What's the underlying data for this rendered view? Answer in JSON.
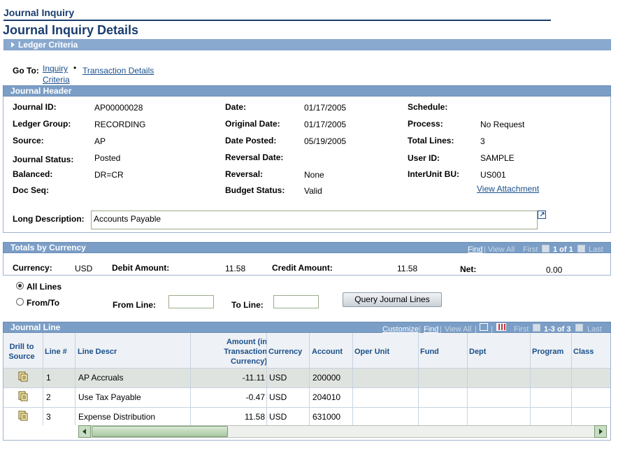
{
  "page": {
    "breadcrumb": "Journal Inquiry",
    "title": "Journal Inquiry Details",
    "ledger_criteria": "Ledger Criteria"
  },
  "goto": {
    "label": "Go To:",
    "inquiry_line1": "Inquiry",
    "inquiry_line2": "Criteria",
    "bullet": "•",
    "transaction_details": "Transaction Details"
  },
  "journal_header": {
    "title": "Journal Header",
    "journal_id_label": "Journal ID:",
    "journal_id": "AP00000028",
    "ledger_group_label": "Ledger Group:",
    "ledger_group": "RECORDING",
    "source_label": "Source:",
    "source": "AP",
    "journal_status_label": "Journal Status:",
    "journal_status": "Posted",
    "balanced_label": "Balanced:",
    "balanced": "DR=CR",
    "doc_seq_label": "Doc Seq:",
    "date_label": "Date:",
    "date": "01/17/2005",
    "original_date_label": "Original Date:",
    "original_date": "01/17/2005",
    "date_posted_label": "Date Posted:",
    "date_posted": "05/19/2005",
    "reversal_date_label": "Reversal Date:",
    "reversal_label": "Reversal:",
    "reversal": "None",
    "budget_status_label": "Budget Status:",
    "budget_status": "Valid",
    "schedule_label": "Schedule:",
    "process_label": "Process:",
    "process": "No Request",
    "total_lines_label": "Total Lines:",
    "total_lines": "3",
    "user_id_label": "User ID:",
    "user_id": "SAMPLE",
    "interunit_label": "InterUnit BU:",
    "interunit": "US001",
    "view_attachment": "View Attachment",
    "long_desc_label": "Long Description:",
    "long_desc": "Accounts Payable"
  },
  "totals": {
    "title": "Totals by Currency",
    "find": "Find",
    "view_all": "View All",
    "first": "First",
    "page_count": "1 of 1",
    "last": "Last",
    "currency_label": "Currency:",
    "currency": "USD",
    "debit_label": "Debit Amount:",
    "debit": "11.58",
    "credit_label": "Credit Amount:",
    "credit": "11.58",
    "net_label": "Net:",
    "net": "0.00"
  },
  "line_filter": {
    "all_lines": "All Lines",
    "from_to": "From/To",
    "from_line_label": "From Line:",
    "to_line_label": "To Line:",
    "from_line": "",
    "to_line": "",
    "query_button": "Query Journal Lines",
    "selected": "all_lines"
  },
  "journal_line": {
    "title": "Journal Line",
    "customize": "Customize",
    "find": "Find",
    "view_all": "View All",
    "first": "First",
    "page_count": "1-3 of 3",
    "last": "Last",
    "columns": {
      "drill_1": "Drill to",
      "drill_2": "Source",
      "line_no": "Line #",
      "line_descr": "Line Descr",
      "amount_1": "Amount (in",
      "amount_2": "Transaction",
      "amount_3": "Currency)",
      "currency": "Currency",
      "account": "Account",
      "oper_unit": "Oper Unit",
      "fund": "Fund",
      "dept": "Dept",
      "program": "Program",
      "class": "Class"
    },
    "rows": [
      {
        "line": "1",
        "descr": "AP Accruals",
        "amount": "-11.11",
        "currency": "USD",
        "account": "200000"
      },
      {
        "line": "2",
        "descr": "Use Tax Payable",
        "amount": "-0.47",
        "currency": "USD",
        "account": "204010"
      },
      {
        "line": "3",
        "descr": "Expense Distribution",
        "amount": "11.58",
        "currency": "USD",
        "account": "631000"
      }
    ]
  },
  "colors": {
    "header_blue": "#7b9ec6",
    "link_blue": "#1a4f8b",
    "title_blue": "#1a3d6e",
    "row_highlight": "#dfe3df"
  }
}
